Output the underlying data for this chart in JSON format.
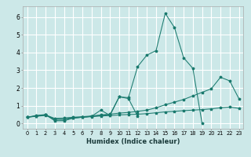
{
  "line1_x": [
    0,
    1,
    2,
    3,
    4,
    5,
    6,
    7,
    8,
    9,
    10,
    11,
    12,
    13,
    14,
    15,
    16,
    17,
    18,
    19
  ],
  "line1_y": [
    0.35,
    0.45,
    0.5,
    0.15,
    0.15,
    0.3,
    0.35,
    0.4,
    0.45,
    0.5,
    1.5,
    1.45,
    3.2,
    3.85,
    4.1,
    6.2,
    5.4,
    3.7,
    3.1,
    0.0
  ],
  "line2_x": [
    0,
    1,
    2,
    3,
    4,
    5,
    6,
    7,
    8,
    9,
    10,
    11,
    12
  ],
  "line2_y": [
    0.35,
    0.42,
    0.48,
    0.18,
    0.2,
    0.3,
    0.35,
    0.4,
    0.75,
    0.45,
    1.5,
    1.4,
    0.4
  ],
  "line3_x": [
    0,
    1,
    2,
    3,
    4,
    5,
    6,
    7,
    8,
    9,
    10,
    11,
    12,
    13,
    14,
    15,
    16,
    17,
    18,
    19,
    20,
    21,
    22,
    23
  ],
  "line3_y": [
    0.35,
    0.42,
    0.48,
    0.28,
    0.3,
    0.35,
    0.38,
    0.42,
    0.48,
    0.52,
    0.58,
    0.62,
    0.68,
    0.75,
    0.88,
    1.05,
    1.2,
    1.35,
    1.55,
    1.75,
    1.95,
    2.6,
    2.4,
    1.4
  ],
  "line4_x": [
    0,
    1,
    2,
    3,
    4,
    5,
    6,
    7,
    8,
    9,
    10,
    11,
    12,
    13,
    14,
    15,
    16,
    17,
    18,
    19,
    20,
    21,
    22,
    23
  ],
  "line4_y": [
    0.35,
    0.4,
    0.45,
    0.25,
    0.28,
    0.32,
    0.35,
    0.38,
    0.42,
    0.44,
    0.48,
    0.5,
    0.52,
    0.55,
    0.6,
    0.65,
    0.68,
    0.72,
    0.75,
    0.78,
    0.82,
    0.88,
    0.92,
    0.85
  ],
  "color": "#1a7a6e",
  "bg_color": "#cce8e8",
  "grid_color": "#ffffff",
  "xlabel": "Humidex (Indice chaleur)",
  "ylim": [
    -0.3,
    6.6
  ],
  "xlim": [
    -0.5,
    23.5
  ],
  "yticks": [
    0,
    1,
    2,
    3,
    4,
    5,
    6
  ],
  "xticks": [
    0,
    1,
    2,
    3,
    4,
    5,
    6,
    7,
    8,
    9,
    10,
    11,
    12,
    13,
    14,
    15,
    16,
    17,
    18,
    19,
    20,
    21,
    22,
    23
  ]
}
